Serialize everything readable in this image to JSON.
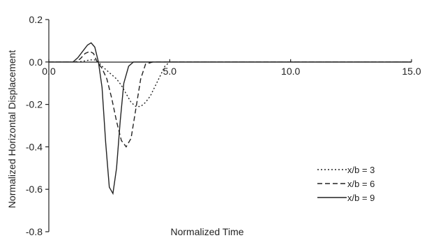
{
  "chart_data": {
    "type": "line",
    "title": "",
    "xlabel": "Normalized Time",
    "ylabel": "Normalized Horizontal Displacement",
    "xlim": [
      0,
      15
    ],
    "ylim": [
      -0.8,
      0.2
    ],
    "x_ticks": [
      "0.0",
      "5.0",
      "10.0",
      "15.0"
    ],
    "y_ticks": [
      "0.2",
      "0.0",
      "-0.2",
      "-0.4",
      "-0.6",
      "-0.8"
    ],
    "x_tick_values": [
      0,
      5,
      10,
      15
    ],
    "y_tick_values": [
      0.2,
      0.0,
      -0.2,
      -0.4,
      -0.6,
      -0.8
    ],
    "grid": false,
    "legend_position": "right",
    "series": [
      {
        "name": "x/b = 3",
        "dash": "dotted",
        "x": [
          0.0,
          1.2,
          1.5,
          1.7,
          1.9,
          2.05,
          2.2,
          2.4,
          2.6,
          2.8,
          3.0,
          3.2,
          3.4,
          3.6,
          3.8,
          4.0,
          4.2,
          4.5,
          4.8,
          5.0,
          6.0,
          15.0
        ],
        "y": [
          0.0,
          0.0,
          0.005,
          0.01,
          0.01,
          0.0,
          -0.02,
          -0.04,
          -0.06,
          -0.08,
          -0.11,
          -0.15,
          -0.19,
          -0.21,
          -0.21,
          -0.19,
          -0.16,
          -0.09,
          -0.02,
          0.0,
          0.0,
          0.0
        ]
      },
      {
        "name": "x/b = 6",
        "dash": "dashed",
        "x": [
          0.0,
          1.1,
          1.3,
          1.5,
          1.7,
          1.85,
          2.0,
          2.2,
          2.4,
          2.6,
          2.8,
          3.0,
          3.2,
          3.4,
          3.6,
          3.8,
          4.0,
          4.3,
          4.8,
          15.0
        ],
        "y": [
          0.0,
          0.0,
          0.015,
          0.04,
          0.05,
          0.04,
          0.0,
          -0.03,
          -0.08,
          -0.17,
          -0.28,
          -0.37,
          -0.4,
          -0.36,
          -0.22,
          -0.08,
          -0.01,
          0.0,
          0.0,
          0.0
        ]
      },
      {
        "name": "x/b = 9",
        "dash": "solid",
        "x": [
          0.0,
          1.0,
          1.2,
          1.4,
          1.6,
          1.75,
          1.9,
          2.05,
          2.2,
          2.35,
          2.5,
          2.65,
          2.8,
          2.95,
          3.1,
          3.3,
          3.5,
          3.8,
          15.0
        ],
        "y": [
          0.0,
          0.0,
          0.02,
          0.05,
          0.08,
          0.09,
          0.07,
          0.0,
          -0.12,
          -0.38,
          -0.59,
          -0.62,
          -0.5,
          -0.28,
          -0.1,
          -0.02,
          0.0,
          0.0,
          0.0
        ]
      }
    ]
  }
}
